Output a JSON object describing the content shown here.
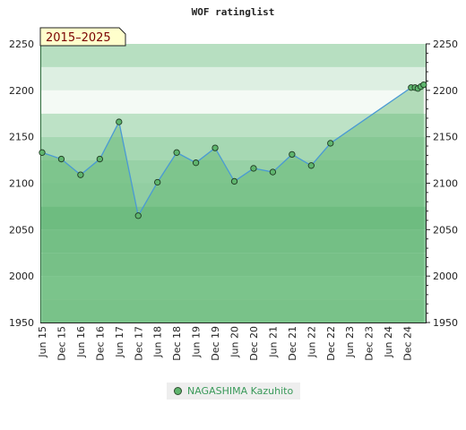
{
  "chart_data": {
    "type": "line",
    "title": "WOF ratinglist",
    "period_label": "2015–2025",
    "ylim": [
      1950,
      2250
    ],
    "y_ticks": [
      1950,
      2000,
      2050,
      2100,
      2150,
      2200,
      2250
    ],
    "x_tick_labels": [
      "Jun 15",
      "Dec 15",
      "Jun 16",
      "Dec 16",
      "Jun 17",
      "Dec 17",
      "Jun 18",
      "Dec 18",
      "Jun 19",
      "Dec 19",
      "Jun 20",
      "Dec 20",
      "Jun 21",
      "Dec 21",
      "Jun 22",
      "Dec 22",
      "Jun 23",
      "Dec 23",
      "Jun 24",
      "Dec 24"
    ],
    "legend": "top-below-chart",
    "series": [
      {
        "name": "NAGASHIMA Kazuhito",
        "color": "#5fb56e",
        "line_color": "#4a9ad4",
        "points": [
          {
            "x": 0.0,
            "y": 2133
          },
          {
            "x": 1.0,
            "y": 2126
          },
          {
            "x": 2.0,
            "y": 2109
          },
          {
            "x": 3.0,
            "y": 2126
          },
          {
            "x": 4.0,
            "y": 2166
          },
          {
            "x": 5.0,
            "y": 2065
          },
          {
            "x": 6.0,
            "y": 2101
          },
          {
            "x": 7.0,
            "y": 2133
          },
          {
            "x": 8.0,
            "y": 2122
          },
          {
            "x": 9.0,
            "y": 2138
          },
          {
            "x": 10.0,
            "y": 2102
          },
          {
            "x": 11.0,
            "y": 2116
          },
          {
            "x": 12.0,
            "y": 2112
          },
          {
            "x": 13.0,
            "y": 2131
          },
          {
            "x": 14.0,
            "y": 2119
          },
          {
            "x": 15.0,
            "y": 2143
          },
          {
            "x": 19.2,
            "y": 2203
          },
          {
            "x": 19.4,
            "y": 2203
          },
          {
            "x": 19.55,
            "y": 2202
          },
          {
            "x": 19.7,
            "y": 2204
          },
          {
            "x": 19.85,
            "y": 2206
          }
        ]
      }
    ]
  }
}
